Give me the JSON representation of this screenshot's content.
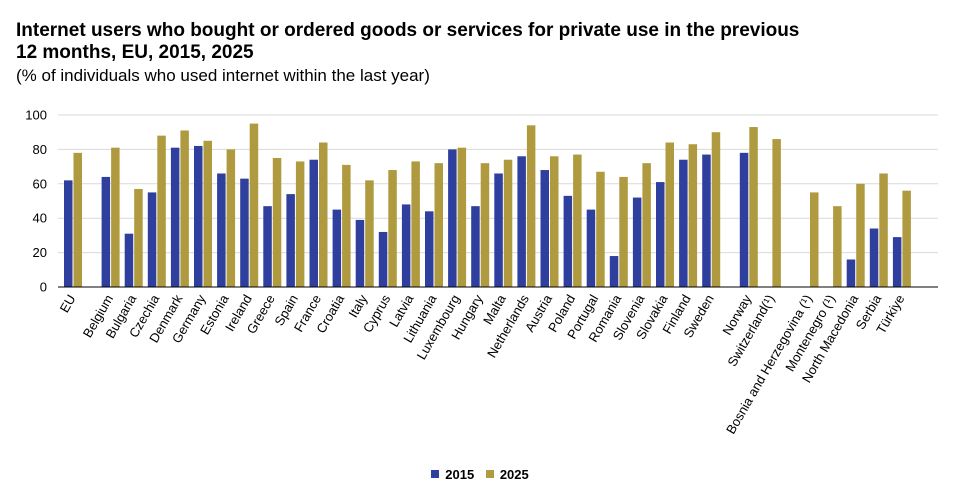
{
  "colors": {
    "series_2015": "#2e3f9e",
    "series_2025": "#b09a3f",
    "grid": "#d9d9d9",
    "axis": "#000000"
  },
  "chart_data": {
    "type": "bar",
    "title": "Internet users who bought or ordered goods or services for private use in the previous 12 months, EU, 2015, 2025",
    "subtitle": "(% of individuals who used internet within the last year)",
    "xlabel": "",
    "ylabel": "",
    "ylim": [
      0,
      100
    ],
    "yticks": [
      0,
      20,
      40,
      60,
      80,
      100
    ],
    "grid": true,
    "legend_position": "bottom-center",
    "groups": [
      1,
      27,
      2,
      5
    ],
    "categories": [
      "EU",
      "Belgium",
      "Bulgaria",
      "Czechia",
      "Denmark",
      "Germany",
      "Estonia",
      "Ireland",
      "Greece",
      "Spain",
      "France",
      "Croatia",
      "Italy",
      "Cyprus",
      "Latvia",
      "Lithuania",
      "Luxembourg",
      "Hungary",
      "Malta",
      "Netherlands",
      "Austria",
      "Poland",
      "Portugal",
      "Romania",
      "Slovenia",
      "Slovakia",
      "Finland",
      "Sweden",
      "Norway",
      "Switzerland(¹)",
      "Bosnia and Herzegovina (¹)",
      "Montenegro (¹)",
      "North Macedonia",
      "Serbia",
      "Türkiye"
    ],
    "series": [
      {
        "name": "2015",
        "values": [
          62,
          64,
          31,
          55,
          81,
          82,
          66,
          63,
          47,
          54,
          74,
          45,
          39,
          32,
          48,
          44,
          80,
          47,
          66,
          76,
          68,
          53,
          45,
          18,
          52,
          61,
          74,
          77,
          78,
          null,
          null,
          null,
          16,
          34,
          29
        ]
      },
      {
        "name": "2025",
        "values": [
          78,
          81,
          57,
          88,
          91,
          85,
          80,
          95,
          75,
          73,
          84,
          71,
          62,
          68,
          73,
          72,
          81,
          72,
          74,
          94,
          76,
          77,
          67,
          64,
          72,
          84,
          83,
          90,
          93,
          86,
          55,
          47,
          60,
          66,
          56
        ]
      }
    ]
  }
}
